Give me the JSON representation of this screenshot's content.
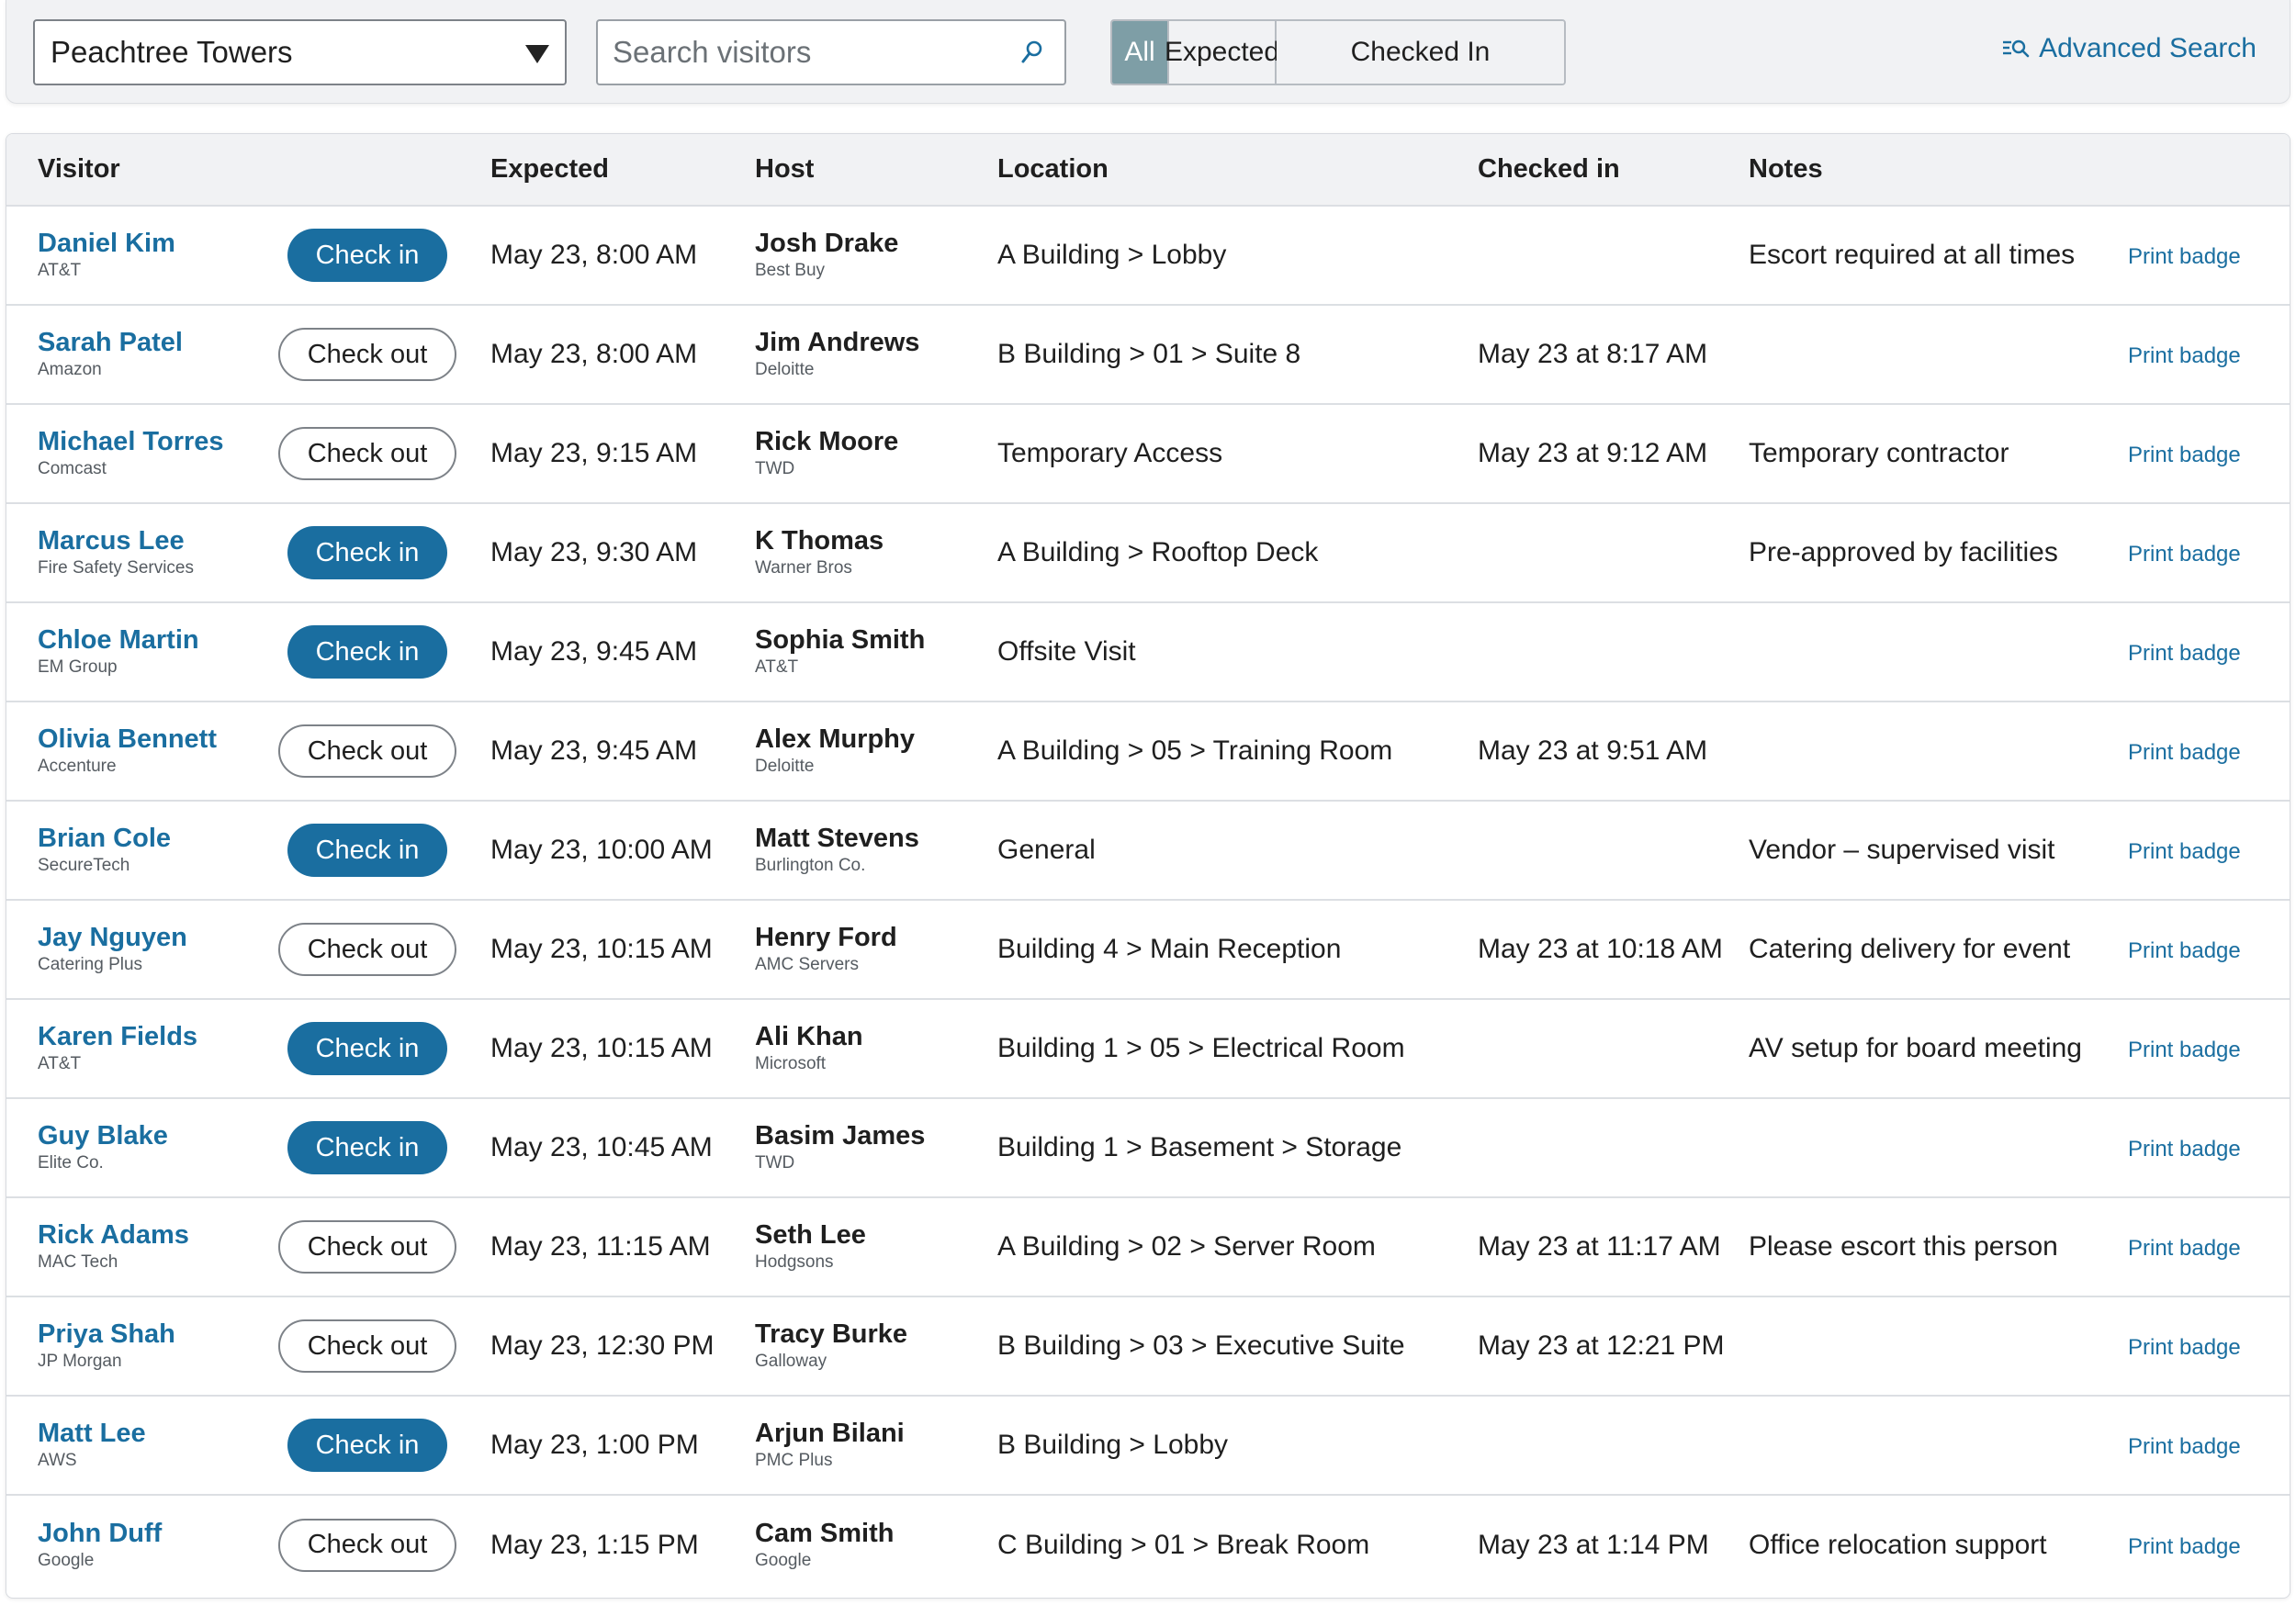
{
  "toolbar": {
    "building": "Peachtree Towers",
    "search_placeholder": "Search visitors",
    "filters": [
      "All",
      "Expected",
      "Checked In"
    ],
    "active_filter": "All",
    "advanced_search": "Advanced Search"
  },
  "table": {
    "headers": {
      "visitor": "Visitor",
      "expected": "Expected",
      "host": "Host",
      "location": "Location",
      "checked_in": "Checked in",
      "notes": "Notes"
    },
    "print_label": "Print badge",
    "rows": [
      {
        "name": "Daniel Kim",
        "company": "AT&T",
        "action": "Check in",
        "expected": "May 23, 8:00 AM",
        "host": "Josh Drake",
        "host_company": "Best Buy",
        "location": "A Building > Lobby",
        "checked_in": "",
        "notes": "Escort required at all times"
      },
      {
        "name": "Sarah Patel",
        "company": "Amazon",
        "action": "Check out",
        "expected": "May 23, 8:00 AM",
        "host": "Jim Andrews",
        "host_company": "Deloitte",
        "location": "B Building > 01 > Suite 8",
        "checked_in": "May 23 at 8:17 AM",
        "notes": ""
      },
      {
        "name": "Michael Torres",
        "company": "Comcast",
        "action": "Check out",
        "expected": "May 23, 9:15 AM",
        "host": "Rick Moore",
        "host_company": "TWD",
        "location": "Temporary Access",
        "checked_in": "May 23 at 9:12 AM",
        "notes": "Temporary contractor"
      },
      {
        "name": "Marcus Lee",
        "company": "Fire Safety Services",
        "action": "Check in",
        "expected": "May 23, 9:30 AM",
        "host": "K Thomas",
        "host_company": "Warner Bros",
        "location": "A Building > Rooftop Deck",
        "checked_in": "",
        "notes": "Pre-approved by facilities"
      },
      {
        "name": "Chloe Martin",
        "company": "EM Group",
        "action": "Check in",
        "expected": "May 23, 9:45 AM",
        "host": "Sophia Smith",
        "host_company": "AT&T",
        "location": "Offsite Visit",
        "checked_in": "",
        "notes": ""
      },
      {
        "name": "Olivia Bennett",
        "company": "Accenture",
        "action": "Check out",
        "expected": "May 23, 9:45 AM",
        "host": "Alex Murphy",
        "host_company": "Deloitte",
        "location": "A Building > 05 > Training Room",
        "checked_in": "May 23 at 9:51 AM",
        "notes": ""
      },
      {
        "name": "Brian Cole",
        "company": "SecureTech",
        "action": "Check in",
        "expected": "May 23, 10:00 AM",
        "host": "Matt Stevens",
        "host_company": "Burlington Co.",
        "location": "General",
        "checked_in": "",
        "notes": "Vendor – supervised visit"
      },
      {
        "name": "Jay Nguyen",
        "company": "Catering Plus",
        "action": "Check out",
        "expected": "May 23, 10:15 AM",
        "host": "Henry Ford",
        "host_company": "AMC Servers",
        "location": "Building 4 > Main Reception",
        "checked_in": "May 23 at 10:18 AM",
        "notes": "Catering delivery for event"
      },
      {
        "name": "Karen Fields",
        "company": "AT&T",
        "action": "Check in",
        "expected": "May 23, 10:15 AM",
        "host": "Ali Khan",
        "host_company": "Microsoft",
        "location": "Building 1 > 05 > Electrical Room",
        "checked_in": "",
        "notes": "AV setup for board meeting"
      },
      {
        "name": "Guy Blake",
        "company": "Elite Co.",
        "action": "Check in",
        "expected": "May 23, 10:45 AM",
        "host": "Basim James",
        "host_company": "TWD",
        "location": "Building 1 > Basement > Storage",
        "checked_in": "",
        "notes": ""
      },
      {
        "name": "Rick Adams",
        "company": "MAC Tech",
        "action": "Check out",
        "expected": "May 23, 11:15 AM",
        "host": "Seth Lee",
        "host_company": "Hodgsons",
        "location": "A Building > 02 > Server Room",
        "checked_in": "May 23 at 11:17 AM",
        "notes": "Please escort this person"
      },
      {
        "name": "Priya Shah",
        "company": "JP Morgan",
        "action": "Check out",
        "expected": "May 23, 12:30 PM",
        "host": "Tracy Burke",
        "host_company": "Galloway",
        "location": "B Building > 03 > Executive Suite",
        "checked_in": "May 23 at 12:21 PM",
        "notes": ""
      },
      {
        "name": "Matt Lee",
        "company": "AWS",
        "action": "Check in",
        "expected": "May 23, 1:00 PM",
        "host": "Arjun Bilani",
        "host_company": "PMC Plus",
        "location": "B Building > Lobby",
        "checked_in": "",
        "notes": ""
      },
      {
        "name": "John Duff",
        "company": "Google",
        "action": "Check out",
        "expected": "May 23, 1:15 PM",
        "host": "Cam Smith",
        "host_company": "Google",
        "location": "C Building > 01 > Break Room",
        "checked_in": "May 23 at 1:14 PM",
        "notes": "Office relocation support"
      }
    ]
  },
  "colors": {
    "accent": "#1a6ea0",
    "filter_active": "#7e9ea6",
    "header_bg": "#f1f2f4"
  }
}
